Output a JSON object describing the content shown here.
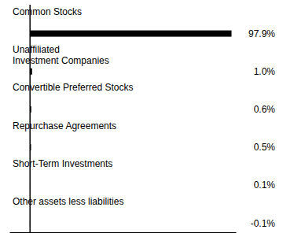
{
  "chart_data": {
    "type": "bar",
    "orientation": "horizontal",
    "categories": [
      "Common Stocks",
      "Unaffiliated\nInvestment Companies",
      "Convertible Preferred Stocks",
      "Repurchase Agreements",
      "Short-Term Investments",
      "Other assets less liabilities"
    ],
    "values": [
      97.9,
      1.0,
      0.6,
      0.5,
      0.1,
      -0.1
    ],
    "value_labels": [
      "97.9%",
      "1.0%",
      "0.6%",
      "0.5%",
      "0.1%",
      "-0.1%"
    ],
    "color": "#000000",
    "xlim": [
      -10,
      100
    ],
    "data_labels": true,
    "tick_labels": false,
    "grid": false
  }
}
